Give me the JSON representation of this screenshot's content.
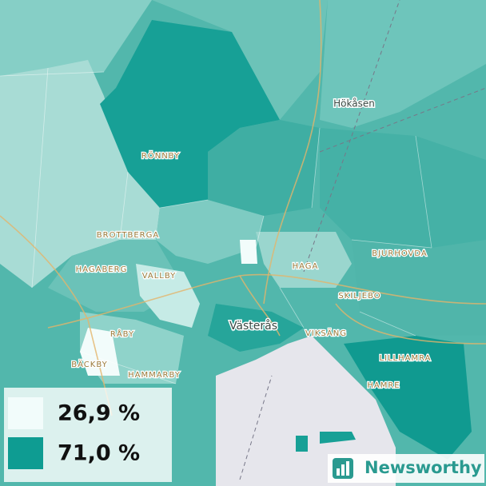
{
  "map": {
    "place_labels": [
      "RÖNNBY",
      "BROTTBERGA",
      "HAGABERG",
      "VALLBY",
      "HAGA",
      "BJURHOVDA",
      "SKILJEBO",
      "VIKSÄNG",
      "RÅBY",
      "BÄCKBY",
      "HAMMARBY",
      "LILLHAMRA",
      "HAMRE"
    ],
    "city_labels": [
      "Västerås",
      "Hökåsen"
    ],
    "legend": [
      {
        "label": "26,9 %",
        "color": "#f2fcfb"
      },
      {
        "label": "71,0 %",
        "color": "#0e9c92"
      }
    ],
    "brand": "Newsworthy"
  }
}
